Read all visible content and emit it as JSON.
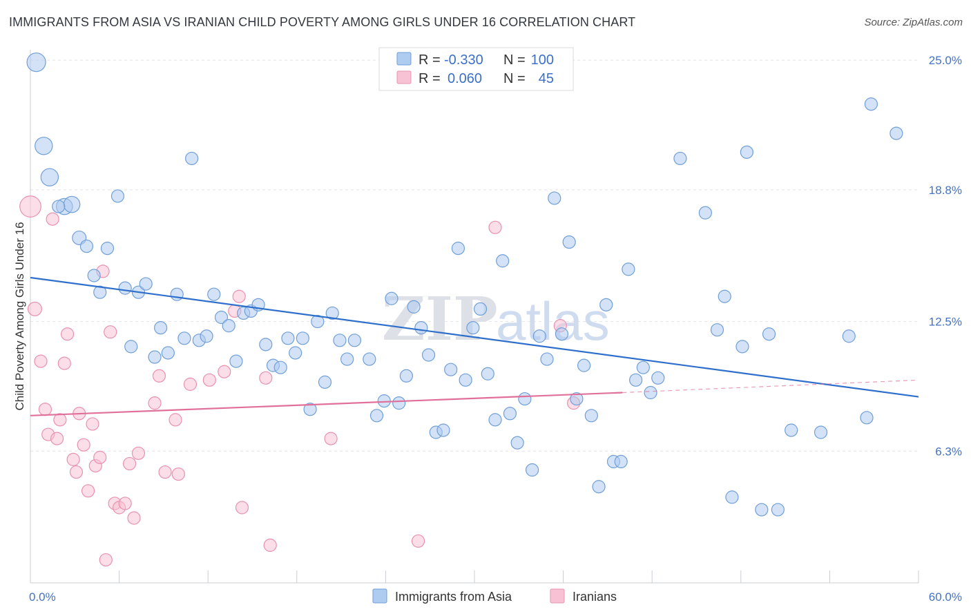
{
  "title": "IMMIGRANTS FROM ASIA VS IRANIAN CHILD POVERTY AMONG GIRLS UNDER 16 CORRELATION CHART",
  "source": "Source: ZipAtlas.com",
  "watermark": {
    "zip": "ZIP",
    "atlas": "atlas"
  },
  "colors": {
    "blue_fill": "#aecbf0",
    "blue_stroke": "#6f9fd8",
    "blue_line": "#2f6fcc",
    "pink_fill": "#f7c2d3",
    "pink_stroke": "#e991ae",
    "pink_line": "#e0709a",
    "label_blue": "#4472c4",
    "grid": "#e2e4ea"
  },
  "legend": {
    "r_label": "R =",
    "n_label": "N =",
    "rows": [
      {
        "r": "-0.330",
        "n": "100"
      },
      {
        "r": "0.060",
        "n": "45"
      }
    ]
  },
  "bottom_legend": [
    "Immigrants from Asia",
    "Iranians"
  ],
  "chart_data": {
    "type": "scatter",
    "ylabel": "Child Poverty Among Girls Under 16",
    "x_tick_labels": [
      "0.0%",
      "60.0%"
    ],
    "y_tick_labels": [
      "25.0%",
      "18.8%",
      "12.5%",
      "6.3%"
    ],
    "y_ticks": [
      25.0,
      18.8,
      12.5,
      6.3
    ],
    "xlim": [
      0,
      60
    ],
    "ylim": [
      0,
      25.5
    ],
    "series": [
      {
        "name": "Immigrants from Asia",
        "r": -0.33,
        "n": 100,
        "trend": {
          "x0": 0,
          "y0": 14.6,
          "x1": 60,
          "y1": 8.9
        },
        "points": [
          [
            0.4,
            24.9,
            1.5
          ],
          [
            0.9,
            20.9,
            1.4
          ],
          [
            1.3,
            19.4,
            1.4
          ],
          [
            2.3,
            18.0,
            1.3
          ],
          [
            2.8,
            18.1,
            1.3
          ],
          [
            3.3,
            16.5,
            1.1
          ],
          [
            3.8,
            16.1,
            1.0
          ],
          [
            4.3,
            14.7,
            1.0
          ],
          [
            4.7,
            13.9,
            1.0
          ],
          [
            5.2,
            16.0,
            1.0
          ],
          [
            5.9,
            18.5,
            1.0
          ],
          [
            6.4,
            14.1,
            1.0
          ],
          [
            6.8,
            11.3,
            1.0
          ],
          [
            7.3,
            13.9,
            1.0
          ],
          [
            7.8,
            14.3,
            1.0
          ],
          [
            8.4,
            10.8,
            1.0
          ],
          [
            8.8,
            12.2,
            1.0
          ],
          [
            9.3,
            11.0,
            1.0
          ],
          [
            9.9,
            13.8,
            1.0
          ],
          [
            10.4,
            11.7,
            1.0
          ],
          [
            10.9,
            20.3,
            1.0
          ],
          [
            11.4,
            11.6,
            1.0
          ],
          [
            11.9,
            11.8,
            1.0
          ],
          [
            12.4,
            13.8,
            1.0
          ],
          [
            12.9,
            12.7,
            1.0
          ],
          [
            13.4,
            12.3,
            1.0
          ],
          [
            13.9,
            10.6,
            1.0
          ],
          [
            14.4,
            12.9,
            1.0
          ],
          [
            14.9,
            13.0,
            1.0
          ],
          [
            15.4,
            13.3,
            1.0
          ],
          [
            15.9,
            11.4,
            1.0
          ],
          [
            16.4,
            10.4,
            1.0
          ],
          [
            16.9,
            10.3,
            1.0
          ],
          [
            17.4,
            11.7,
            1.0
          ],
          [
            17.9,
            11.0,
            1.0
          ],
          [
            18.4,
            11.7,
            1.0
          ],
          [
            18.9,
            8.3,
            1.0
          ],
          [
            19.4,
            12.5,
            1.0
          ],
          [
            19.9,
            9.6,
            1.0
          ],
          [
            20.4,
            12.9,
            1.0
          ],
          [
            20.9,
            11.6,
            1.0
          ],
          [
            21.4,
            10.7,
            1.0
          ],
          [
            21.9,
            11.6,
            1.0
          ],
          [
            22.9,
            10.7,
            1.0
          ],
          [
            23.4,
            8.0,
            1.0
          ],
          [
            23.9,
            8.7,
            1.0
          ],
          [
            24.4,
            13.6,
            1.0
          ],
          [
            24.9,
            8.6,
            1.0
          ],
          [
            25.4,
            9.9,
            1.0
          ],
          [
            25.9,
            13.2,
            1.0
          ],
          [
            26.4,
            12.2,
            1.0
          ],
          [
            26.9,
            10.9,
            1.0
          ],
          [
            27.4,
            7.2,
            1.0
          ],
          [
            27.9,
            7.3,
            1.0
          ],
          [
            28.4,
            10.2,
            1.0
          ],
          [
            28.9,
            16.0,
            1.0
          ],
          [
            29.4,
            9.7,
            1.0
          ],
          [
            29.9,
            12.2,
            1.0
          ],
          [
            30.4,
            13.1,
            1.0
          ],
          [
            30.9,
            10.0,
            1.0
          ],
          [
            31.4,
            7.8,
            1.0
          ],
          [
            31.9,
            15.4,
            1.0
          ],
          [
            32.4,
            8.1,
            1.0
          ],
          [
            32.9,
            6.7,
            1.0
          ],
          [
            33.4,
            8.8,
            1.0
          ],
          [
            33.9,
            5.4,
            1.0
          ],
          [
            34.4,
            11.8,
            1.0
          ],
          [
            34.9,
            10.7,
            1.0
          ],
          [
            35.4,
            18.4,
            1.0
          ],
          [
            35.9,
            11.9,
            1.0
          ],
          [
            36.4,
            16.3,
            1.0
          ],
          [
            36.9,
            8.8,
            1.0
          ],
          [
            37.4,
            10.4,
            1.0
          ],
          [
            37.9,
            8.0,
            1.0
          ],
          [
            38.4,
            4.6,
            1.0
          ],
          [
            38.9,
            13.3,
            1.0
          ],
          [
            39.4,
            5.8,
            1.0
          ],
          [
            39.9,
            5.8,
            1.0
          ],
          [
            40.4,
            15.0,
            1.0
          ],
          [
            40.9,
            9.7,
            1.0
          ],
          [
            41.4,
            10.3,
            1.0
          ],
          [
            41.9,
            9.1,
            1.0
          ],
          [
            42.4,
            9.8,
            1.0
          ],
          [
            43.9,
            20.3,
            1.0
          ],
          [
            45.6,
            17.7,
            1.0
          ],
          [
            46.4,
            12.1,
            1.0
          ],
          [
            46.9,
            13.7,
            1.0
          ],
          [
            47.4,
            4.1,
            1.0
          ],
          [
            48.1,
            11.3,
            1.0
          ],
          [
            48.4,
            20.6,
            1.0
          ],
          [
            49.4,
            3.5,
            1.0
          ],
          [
            49.9,
            11.9,
            1.0
          ],
          [
            50.5,
            3.5,
            1.0
          ],
          [
            51.4,
            7.3,
            1.0
          ],
          [
            53.4,
            7.2,
            1.0
          ],
          [
            55.3,
            11.8,
            1.0
          ],
          [
            56.5,
            7.9,
            1.0
          ],
          [
            56.8,
            22.9,
            1.0
          ],
          [
            58.5,
            21.5,
            1.0
          ],
          [
            1.9,
            18.0,
            1.0
          ]
        ]
      },
      {
        "name": "Iranians",
        "r": 0.06,
        "n": 45,
        "trend": {
          "x0": 0,
          "y0": 8.0,
          "x1": 40,
          "y1": 9.1,
          "dash_x1": 60,
          "dash_y1": 9.7
        },
        "points": [
          [
            0.0,
            18.0,
            1.7
          ],
          [
            0.3,
            13.1,
            1.1
          ],
          [
            0.7,
            10.6,
            1.0
          ],
          [
            1.0,
            8.3,
            1.0
          ],
          [
            1.2,
            7.1,
            1.0
          ],
          [
            1.5,
            17.4,
            1.0
          ],
          [
            1.8,
            6.9,
            1.0
          ],
          [
            2.0,
            7.8,
            1.0
          ],
          [
            2.3,
            10.5,
            1.0
          ],
          [
            2.5,
            11.9,
            1.0
          ],
          [
            2.9,
            5.9,
            1.0
          ],
          [
            3.1,
            5.3,
            1.0
          ],
          [
            3.3,
            8.1,
            1.0
          ],
          [
            3.6,
            6.6,
            1.0
          ],
          [
            3.9,
            4.4,
            1.0
          ],
          [
            4.2,
            7.6,
            1.0
          ],
          [
            4.4,
            5.6,
            1.0
          ],
          [
            4.7,
            6.0,
            1.0
          ],
          [
            4.9,
            14.9,
            1.0
          ],
          [
            5.1,
            1.1,
            1.0
          ],
          [
            5.4,
            12.0,
            1.0
          ],
          [
            5.7,
            3.8,
            1.0
          ],
          [
            6.0,
            3.6,
            1.0
          ],
          [
            6.4,
            3.8,
            1.0
          ],
          [
            6.7,
            5.7,
            1.0
          ],
          [
            7.0,
            3.1,
            1.0
          ],
          [
            7.3,
            6.2,
            1.0
          ],
          [
            8.4,
            8.6,
            1.0
          ],
          [
            8.7,
            9.9,
            1.0
          ],
          [
            9.1,
            5.3,
            1.0
          ],
          [
            9.8,
            7.8,
            1.0
          ],
          [
            10.0,
            5.2,
            1.0
          ],
          [
            10.8,
            9.5,
            1.0
          ],
          [
            12.1,
            9.7,
            1.0
          ],
          [
            13.1,
            10.1,
            1.0
          ],
          [
            14.1,
            13.7,
            1.0
          ],
          [
            13.8,
            13.0,
            1.0
          ],
          [
            14.3,
            3.6,
            1.0
          ],
          [
            15.9,
            9.8,
            1.0
          ],
          [
            16.2,
            1.8,
            1.0
          ],
          [
            20.3,
            6.9,
            1.0
          ],
          [
            26.2,
            2.0,
            1.0
          ],
          [
            31.4,
            17.0,
            1.0
          ],
          [
            35.8,
            12.3,
            1.0
          ],
          [
            36.7,
            8.6,
            1.0
          ]
        ]
      }
    ]
  }
}
